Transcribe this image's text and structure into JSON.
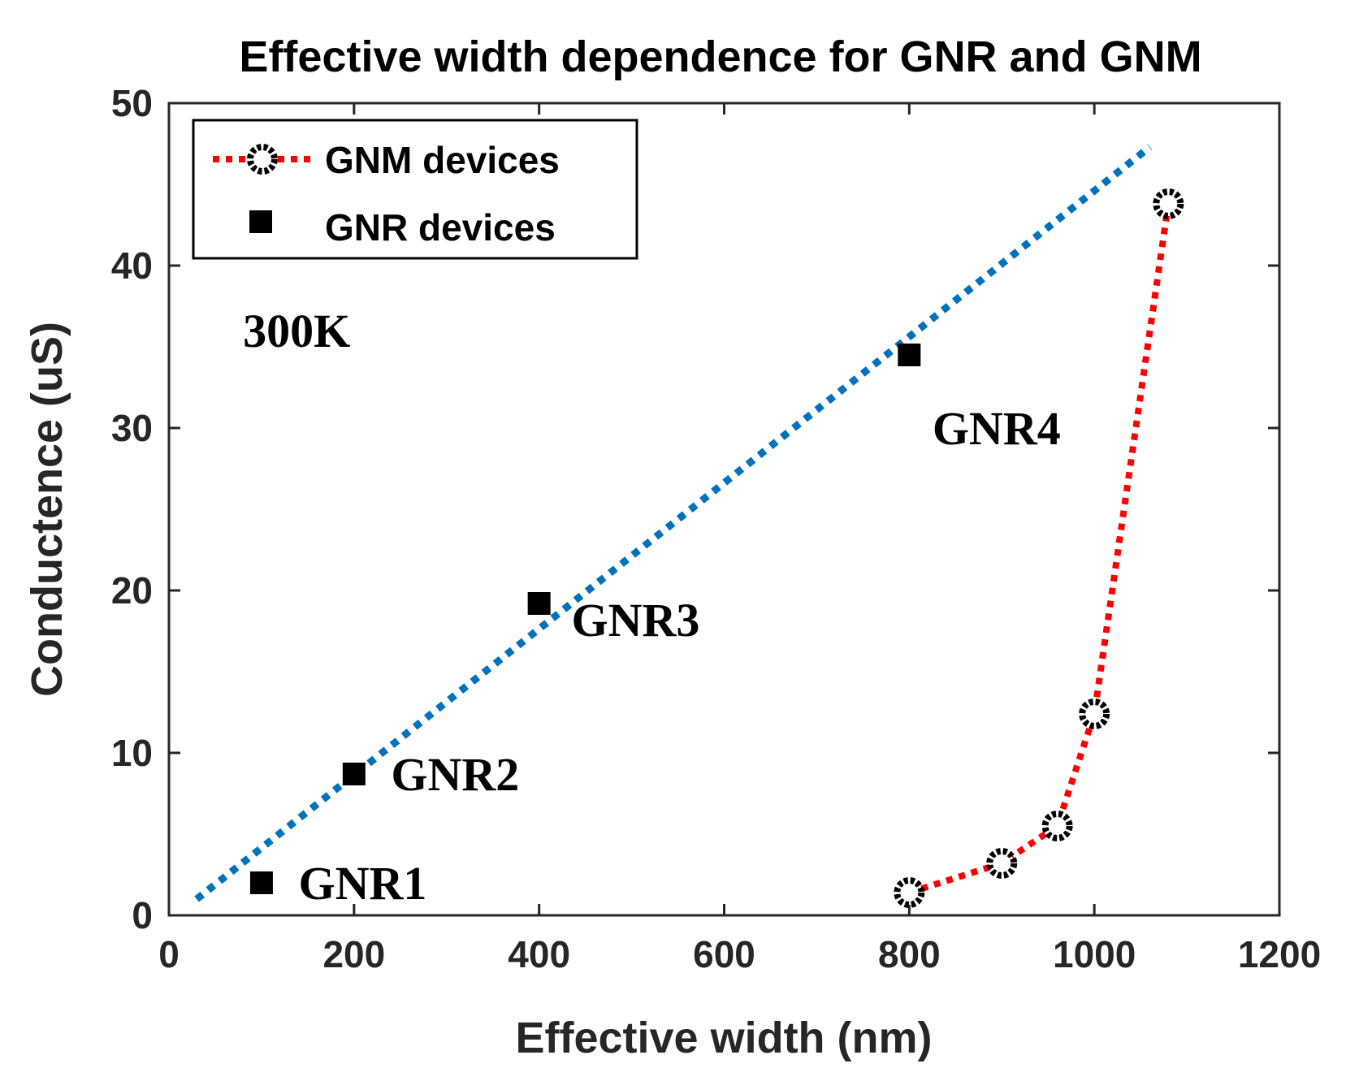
{
  "chart_data": {
    "type": "scatter",
    "title": "Effective width dependence for GNR and GNM",
    "xlabel": "Effective width (nm)",
    "ylabel": "Conductence (uS)",
    "xlim": [
      0,
      1200
    ],
    "ylim": [
      0,
      50
    ],
    "xticks": [
      0,
      200,
      400,
      600,
      800,
      1000,
      1200
    ],
    "yticks": [
      0,
      10,
      20,
      30,
      40,
      50
    ],
    "grid": false,
    "legend_position": "top-left",
    "series": [
      {
        "name": "GNM devices",
        "style": "dotted line with open circle markers",
        "color": "#ff0000",
        "marker_color": "#000000",
        "x": [
          800,
          900,
          960,
          1000,
          1080
        ],
        "y": [
          1.4,
          3.2,
          5.5,
          12.4,
          43.8
        ]
      },
      {
        "name": "GNR devices",
        "style": "filled square markers",
        "color": "#000000",
        "x": [
          100,
          200,
          400,
          800
        ],
        "y": [
          2.0,
          8.7,
          19.2,
          34.5
        ]
      }
    ],
    "fit_line": {
      "style": "dotted",
      "color": "#0072bd",
      "x": [
        30,
        1060
      ],
      "y": [
        1.0,
        47.3
      ]
    },
    "annotations": [
      {
        "text": "300K",
        "x": 80,
        "y": 36
      },
      {
        "text": "GNR1",
        "x": 140,
        "y": 2.0
      },
      {
        "text": "GNR2",
        "x": 240,
        "y": 8.7
      },
      {
        "text": "GNR3",
        "x": 435,
        "y": 18.2
      },
      {
        "text": "GNR4",
        "x": 825,
        "y": 30
      }
    ]
  }
}
